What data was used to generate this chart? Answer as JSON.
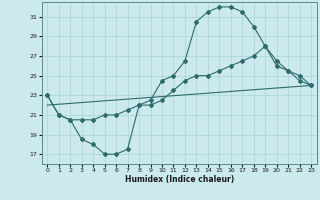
{
  "xlabel": "Humidex (Indice chaleur)",
  "bg_color": "#cce9ed",
  "line_color": "#2e6b6b",
  "grid_color": "#a8d5da",
  "xlim": [
    -0.5,
    23.5
  ],
  "ylim": [
    16.0,
    32.5
  ],
  "xticks": [
    0,
    1,
    2,
    3,
    4,
    5,
    6,
    7,
    8,
    9,
    10,
    11,
    12,
    13,
    14,
    15,
    16,
    17,
    18,
    19,
    20,
    21,
    22,
    23
  ],
  "yticks": [
    17,
    19,
    21,
    23,
    25,
    27,
    29,
    31
  ],
  "line1_x": [
    0,
    1,
    2,
    3,
    4,
    5,
    6,
    7,
    8,
    9,
    10,
    11,
    12,
    13,
    14,
    15,
    16,
    17,
    18,
    19,
    20,
    21,
    22,
    23
  ],
  "line1_y": [
    23,
    21,
    20.5,
    18.5,
    18,
    17,
    17,
    17.5,
    22,
    22.5,
    24.5,
    25,
    26.5,
    30.5,
    31.5,
    32,
    32,
    31.5,
    30,
    28,
    26.5,
    25.5,
    24.5,
    24
  ],
  "line2_x": [
    0,
    1,
    2,
    3,
    4,
    5,
    6,
    7,
    8,
    9,
    10,
    11,
    12,
    13,
    14,
    15,
    16,
    17,
    18,
    19,
    20,
    21,
    22,
    23
  ],
  "line2_y": [
    23,
    21,
    20.5,
    20.5,
    20.5,
    21,
    21,
    21.5,
    22,
    22,
    22.5,
    23.5,
    24.5,
    25,
    25,
    25.5,
    26,
    26.5,
    27,
    28,
    26,
    25.5,
    25,
    24
  ],
  "line3_x": [
    0,
    23
  ],
  "line3_y": [
    22,
    24
  ]
}
